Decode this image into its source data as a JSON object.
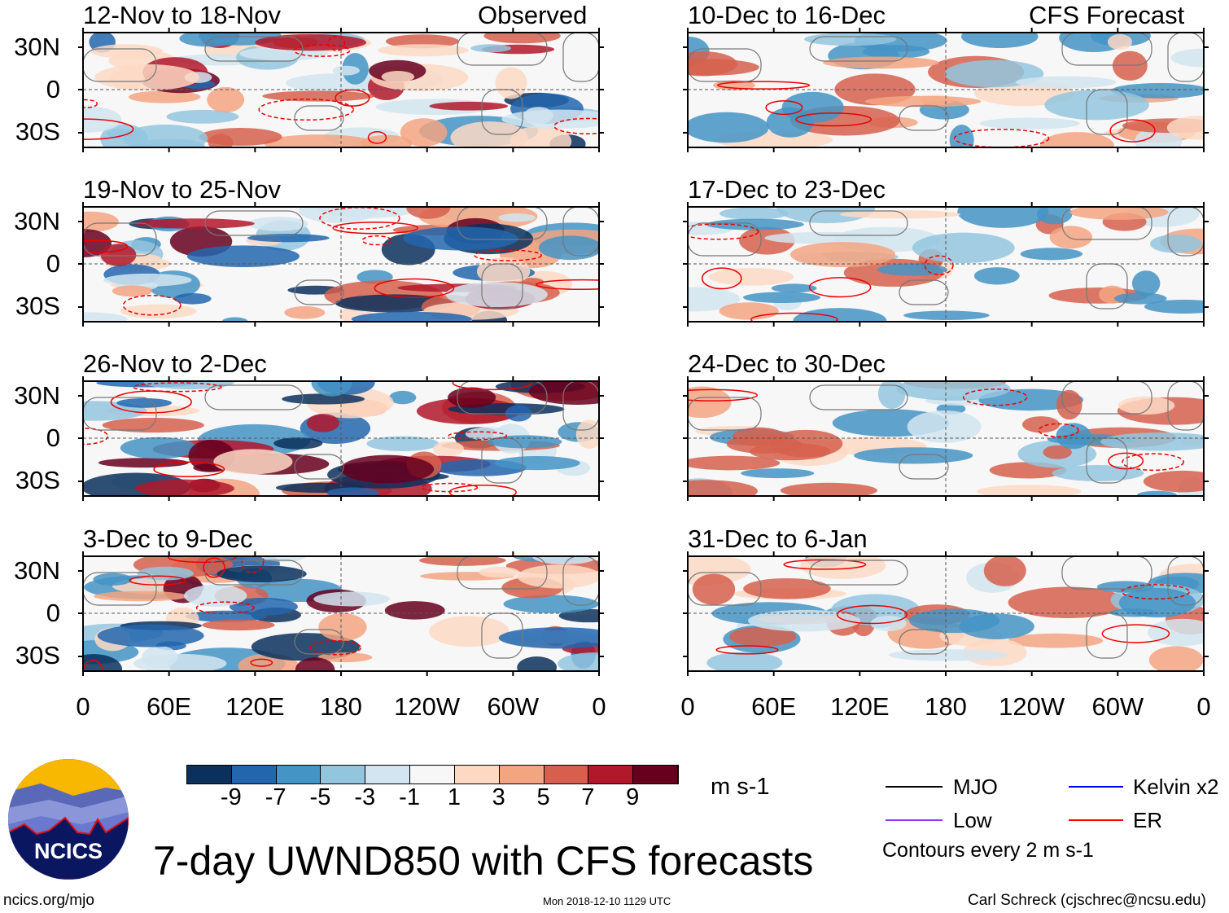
{
  "chart_data": {
    "type": "heatmap",
    "title": "7-day UWND850 with CFS forecasts",
    "variable_units": "m s-1",
    "column_labels": [
      "Observed",
      "CFS Forecast"
    ],
    "panels_observed": [
      "12-Nov to 18-Nov",
      "19-Nov to 25-Nov",
      "26-Nov to 2-Dec",
      "3-Dec to 9-Dec"
    ],
    "panels_forecast": [
      "10-Dec to 16-Dec",
      "17-Dec to 23-Dec",
      "24-Dec to 30-Dec",
      "31-Dec to 6-Jan"
    ],
    "y_ticks": [
      "30N",
      "0",
      "30S"
    ],
    "x_ticks": [
      "0",
      "60E",
      "120E",
      "180",
      "120W",
      "60W",
      "0"
    ],
    "colorbar": {
      "levels": [
        -9,
        -7,
        -5,
        -3,
        -1,
        1,
        3,
        5,
        7,
        9
      ],
      "level_labels": [
        "-9",
        "-7",
        "-5",
        "-3",
        "-1",
        "1",
        "3",
        "5",
        "7",
        "9"
      ],
      "colors": [
        "#0b305c",
        "#2266ae",
        "#4494c6",
        "#93c5df",
        "#d2e5f0",
        "#f7f7f7",
        "#fdd9c4",
        "#f3a481",
        "#d6604d",
        "#b2182b",
        "#67001f"
      ]
    },
    "legend": [
      {
        "label": "MJO",
        "color": "#000000"
      },
      {
        "label": "Kelvin x2",
        "color": "#0000ff"
      },
      {
        "label": "Low",
        "color": "#9933ff"
      },
      {
        "label": "ER",
        "color": "#ff0000"
      }
    ],
    "contour_note": "Contours every 2 m s-1"
  },
  "footer": {
    "logo_text": "NCICS",
    "url": "ncics.org/mjo",
    "timestamp": "Mon 2018-12-10 1129 UTC",
    "credit": "Carl Schreck (cjschrec@ncsu.edu)"
  }
}
